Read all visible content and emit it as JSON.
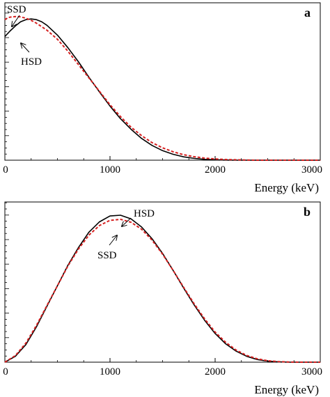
{
  "chart_data": [
    {
      "panel": "a",
      "type": "line",
      "xlabel": "Energy (keV)",
      "ylabel": "",
      "xlim": [
        0,
        3000
      ],
      "ylim": [
        0,
        1.12
      ],
      "x_ticks": [
        0,
        1000,
        2000,
        3000
      ],
      "x_tick_labels": [
        "0",
        "1000",
        "2000",
        "3000"
      ],
      "grid": false,
      "legend": "none",
      "annotations": [
        {
          "text": "SSD",
          "series": "SSD",
          "points_to": [
            130,
            1.01
          ]
        },
        {
          "text": "HSD",
          "series": "HSD",
          "points_to": [
            190,
            0.95
          ]
        }
      ],
      "series": [
        {
          "name": "HSD",
          "color": "#000000",
          "style": "solid",
          "x": [
            0,
            50,
            100,
            150,
            200,
            250,
            300,
            350,
            400,
            500,
            600,
            700,
            800,
            900,
            1000,
            1100,
            1200,
            1300,
            1400,
            1500,
            1600,
            1700,
            1800,
            1900,
            2000,
            2100,
            2200,
            2300,
            2400,
            2500,
            2700,
            3000
          ],
          "y": [
            0.88,
            0.92,
            0.955,
            0.985,
            1.0,
            1.005,
            1.0,
            0.985,
            0.96,
            0.89,
            0.8,
            0.7,
            0.59,
            0.485,
            0.385,
            0.295,
            0.22,
            0.155,
            0.105,
            0.068,
            0.042,
            0.024,
            0.013,
            0.006,
            0.003,
            0.001,
            0.0,
            0.0,
            0.0,
            0.0,
            0.0,
            0.0
          ]
        },
        {
          "name": "SSD",
          "color": "#d62020",
          "style": "dashed",
          "x": [
            0,
            25,
            50,
            100,
            150,
            200,
            250,
            300,
            350,
            400,
            500,
            600,
            700,
            800,
            900,
            1000,
            1100,
            1200,
            1300,
            1400,
            1500,
            1600,
            1700,
            1800,
            1900,
            2000,
            2100,
            2200,
            2300,
            2400,
            2500,
            2700,
            3000
          ],
          "y": [
            1.0,
            1.012,
            1.018,
            1.022,
            1.02,
            1.01,
            0.995,
            0.975,
            0.95,
            0.925,
            0.86,
            0.775,
            0.68,
            0.585,
            0.49,
            0.395,
            0.31,
            0.235,
            0.175,
            0.125,
            0.088,
            0.06,
            0.039,
            0.025,
            0.015,
            0.009,
            0.005,
            0.003,
            0.001,
            0.0,
            0.0,
            0.0,
            0.0
          ]
        }
      ]
    },
    {
      "panel": "b",
      "type": "line",
      "xlabel": "Energy (keV)",
      "ylabel": "",
      "xlim": [
        0,
        3000
      ],
      "ylim": [
        0,
        1.09
      ],
      "x_ticks": [
        0,
        1000,
        2000,
        3000
      ],
      "x_tick_labels": [
        "0",
        "1000",
        "2000",
        "3000"
      ],
      "grid": false,
      "legend": "none",
      "annotations": [
        {
          "text": "HSD",
          "series": "HSD",
          "points_to": [
            1150,
            1.0
          ]
        },
        {
          "text": "SSD",
          "series": "SSD",
          "points_to": [
            1150,
            0.965
          ]
        }
      ],
      "series": [
        {
          "name": "HSD",
          "color": "#000000",
          "style": "solid",
          "x": [
            0,
            100,
            200,
            300,
            400,
            500,
            600,
            700,
            800,
            900,
            1000,
            1100,
            1200,
            1300,
            1400,
            1500,
            1600,
            1700,
            1800,
            1900,
            2000,
            2100,
            2200,
            2300,
            2400,
            2500,
            2600,
            2700,
            2800,
            3000
          ],
          "y": [
            0.0,
            0.04,
            0.12,
            0.24,
            0.38,
            0.52,
            0.66,
            0.78,
            0.885,
            0.955,
            0.995,
            1.0,
            0.975,
            0.92,
            0.84,
            0.74,
            0.625,
            0.505,
            0.39,
            0.285,
            0.195,
            0.125,
            0.075,
            0.04,
            0.018,
            0.007,
            0.002,
            0.0,
            0.0,
            0.0
          ]
        },
        {
          "name": "SSD",
          "color": "#d62020",
          "style": "dashed",
          "x": [
            0,
            100,
            200,
            300,
            400,
            500,
            600,
            700,
            800,
            900,
            1000,
            1100,
            1200,
            1300,
            1400,
            1500,
            1600,
            1700,
            1800,
            1900,
            2000,
            2100,
            2200,
            2300,
            2400,
            2500,
            2600,
            2700,
            2800,
            3000
          ],
          "y": [
            0.0,
            0.045,
            0.13,
            0.25,
            0.385,
            0.52,
            0.655,
            0.77,
            0.865,
            0.93,
            0.965,
            0.972,
            0.952,
            0.905,
            0.83,
            0.735,
            0.625,
            0.51,
            0.398,
            0.295,
            0.205,
            0.135,
            0.082,
            0.046,
            0.023,
            0.01,
            0.004,
            0.001,
            0.0,
            0.0
          ]
        }
      ]
    }
  ]
}
